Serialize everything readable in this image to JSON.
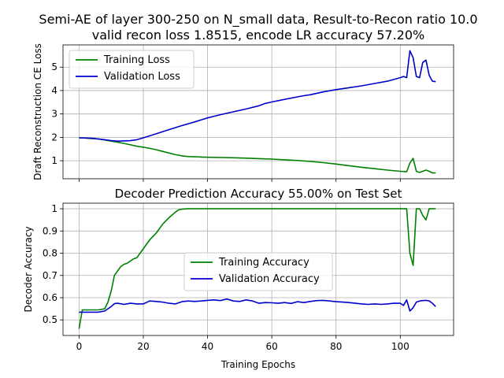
{
  "figure": {
    "title_line1": "Semi-AE of layer 300-250 on N_small data, Result-to-Recon ratio 10.0",
    "title_line2": "valid recon loss 1.8515, encode LR accuracy 57.20%"
  },
  "colors": {
    "training": "#008000",
    "validation": "#0000cc",
    "grid": "#b0b0b0"
  },
  "chart_data": [
    {
      "type": "line",
      "title": "",
      "xlabel": "",
      "ylabel": "Draft Reconstruction CE Loss",
      "xlim": [
        -5,
        116.6
      ],
      "ylim": [
        0.23,
        5.95
      ],
      "xticks": [
        0,
        20,
        40,
        60,
        80,
        100
      ],
      "xticklabels_shown": false,
      "yticks": [
        1,
        2,
        3,
        4,
        5
      ],
      "grid": true,
      "legend_position": "upper-left",
      "series": [
        {
          "name": "Training Loss",
          "color": "#008000",
          "x": [
            0,
            2,
            4,
            6,
            8,
            10,
            12,
            14,
            16,
            18,
            20,
            22,
            24,
            26,
            28,
            30,
            32,
            34,
            36,
            38,
            40,
            44,
            48,
            52,
            56,
            60,
            64,
            68,
            72,
            76,
            80,
            84,
            88,
            92,
            96,
            100,
            102,
            103,
            104,
            105,
            106,
            107,
            108,
            109,
            110,
            111
          ],
          "y": [
            1.98,
            1.97,
            1.95,
            1.93,
            1.89,
            1.84,
            1.79,
            1.74,
            1.68,
            1.62,
            1.58,
            1.53,
            1.47,
            1.4,
            1.33,
            1.26,
            1.21,
            1.18,
            1.17,
            1.16,
            1.15,
            1.14,
            1.13,
            1.11,
            1.09,
            1.07,
            1.04,
            1.01,
            0.97,
            0.92,
            0.86,
            0.79,
            0.72,
            0.66,
            0.6,
            0.55,
            0.53,
            0.9,
            1.1,
            0.55,
            0.5,
            0.55,
            0.6,
            0.55,
            0.48,
            0.48
          ]
        },
        {
          "name": "Validation Loss",
          "color": "#0000cc",
          "x": [
            0,
            4,
            8,
            10,
            12,
            14,
            16,
            18,
            20,
            24,
            28,
            32,
            36,
            40,
            44,
            48,
            52,
            56,
            58,
            60,
            64,
            68,
            70,
            72,
            76,
            80,
            84,
            88,
            92,
            96,
            100,
            101,
            102,
            103,
            104,
            105,
            106,
            107,
            108,
            109,
            110,
            111
          ],
          "y": [
            1.98,
            1.96,
            1.9,
            1.86,
            1.84,
            1.85,
            1.86,
            1.9,
            1.98,
            2.15,
            2.33,
            2.5,
            2.66,
            2.83,
            2.97,
            3.09,
            3.21,
            3.35,
            3.45,
            3.51,
            3.62,
            3.73,
            3.78,
            3.82,
            3.94,
            4.04,
            4.12,
            4.2,
            4.3,
            4.4,
            4.55,
            4.6,
            4.55,
            5.7,
            5.4,
            4.6,
            4.55,
            5.2,
            5.3,
            4.65,
            4.4,
            4.38
          ]
        }
      ]
    },
    {
      "type": "line",
      "title": "Decoder Prediction Accuracy 55.00% on Test Set",
      "xlabel": "Training Epochs",
      "ylabel": "Decoder Accuracy",
      "xlim": [
        -5,
        116.6
      ],
      "ylim": [
        0.43,
        1.025
      ],
      "xticks": [
        0,
        20,
        40,
        60,
        80,
        100
      ],
      "xticklabels_shown": true,
      "yticks": [
        0.5,
        0.6,
        0.7,
        0.8,
        0.9,
        1.0
      ],
      "grid": true,
      "legend_position": "center",
      "series": [
        {
          "name": "Training Accuracy",
          "color": "#008000",
          "x": [
            0,
            1,
            2,
            4,
            6,
            8,
            9,
            10,
            11,
            12,
            13,
            14,
            15,
            16,
            17,
            18,
            19,
            20,
            22,
            24,
            26,
            28,
            30,
            31,
            32,
            34,
            36,
            40,
            50,
            60,
            70,
            80,
            90,
            100,
            102,
            103,
            104,
            105,
            106,
            107,
            108,
            109,
            110,
            111
          ],
          "y": [
            0.46,
            0.545,
            0.545,
            0.545,
            0.545,
            0.55,
            0.58,
            0.63,
            0.7,
            0.72,
            0.74,
            0.75,
            0.755,
            0.765,
            0.775,
            0.78,
            0.8,
            0.82,
            0.86,
            0.89,
            0.93,
            0.96,
            0.985,
            0.995,
            0.998,
            1.0,
            1.0,
            1.0,
            1.0,
            1.0,
            1.0,
            1.0,
            1.0,
            1.0,
            1.0,
            0.8,
            0.745,
            1.0,
            1.0,
            0.97,
            0.95,
            1.0,
            1.0,
            1.0
          ]
        },
        {
          "name": "Validation Accuracy",
          "color": "#0000cc",
          "x": [
            0,
            2,
            4,
            6,
            8,
            10,
            11,
            12,
            14,
            16,
            18,
            20,
            22,
            24,
            26,
            28,
            30,
            32,
            34,
            36,
            38,
            40,
            42,
            44,
            46,
            48,
            50,
            52,
            54,
            56,
            58,
            60,
            62,
            64,
            66,
            68,
            70,
            72,
            74,
            76,
            78,
            80,
            82,
            84,
            86,
            88,
            90,
            92,
            94,
            96,
            98,
            100,
            101,
            102,
            103,
            104,
            105,
            106,
            107,
            108,
            109,
            110,
            111
          ],
          "y": [
            0.535,
            0.535,
            0.535,
            0.535,
            0.54,
            0.56,
            0.573,
            0.575,
            0.57,
            0.575,
            0.572,
            0.572,
            0.585,
            0.583,
            0.58,
            0.575,
            0.572,
            0.582,
            0.585,
            0.583,
            0.585,
            0.588,
            0.59,
            0.587,
            0.594,
            0.585,
            0.583,
            0.59,
            0.585,
            0.575,
            0.578,
            0.577,
            0.575,
            0.578,
            0.574,
            0.582,
            0.578,
            0.583,
            0.587,
            0.588,
            0.585,
            0.582,
            0.58,
            0.578,
            0.575,
            0.572,
            0.57,
            0.572,
            0.57,
            0.572,
            0.575,
            0.575,
            0.565,
            0.59,
            0.54,
            0.555,
            0.58,
            0.585,
            0.587,
            0.588,
            0.585,
            0.575,
            0.56
          ]
        }
      ]
    }
  ]
}
